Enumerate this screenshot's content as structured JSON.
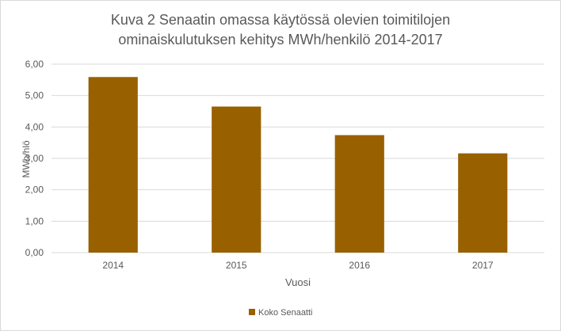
{
  "chart_data": {
    "type": "bar",
    "title_lines": [
      "Kuva 2 Senaatin omassa käytössä olevien toimitilojen",
      "ominaiskulutuksen kehitys MWh/henkilö 2014-2017"
    ],
    "xlabel": "Vuosi",
    "ylabel": "MWh/hlö",
    "categories": [
      "2014",
      "2015",
      "2016",
      "2017"
    ],
    "series": [
      {
        "name": "Koko Senaatti",
        "values": [
          5.59,
          4.65,
          3.74,
          3.16
        ]
      }
    ],
    "ylim": [
      0,
      6
    ],
    "yticks": [
      "0,00",
      "1,00",
      "2,00",
      "3,00",
      "4,00",
      "5,00",
      "6,00"
    ],
    "grid": true,
    "legend_position": "bottom",
    "colors": {
      "bar": "#996000",
      "grid": "#d9d9d9",
      "text": "#595959"
    }
  }
}
